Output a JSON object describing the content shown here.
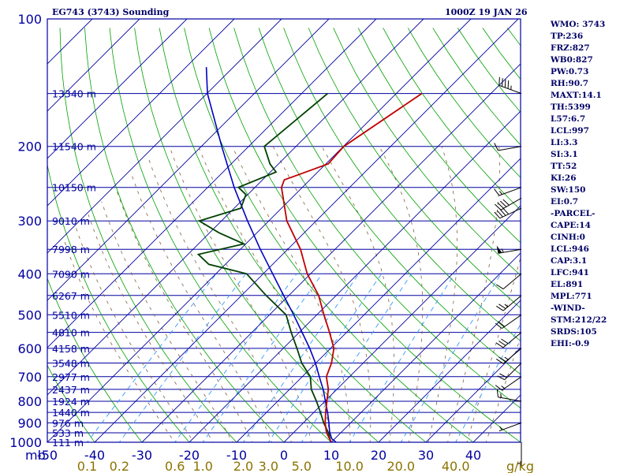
{
  "header": {
    "station": "EG743 (3743) Sounding",
    "time": "1000Z 19 JAN 26"
  },
  "indices": [
    "WMO: 3743",
    "TP:236",
    "FRZ:827",
    "WB0:827",
    "PW:0.73",
    "RH:90.7",
    "MAXT:14.1",
    "TH:5399",
    "L57:6.7",
    "LCL:997",
    "LI:3.3",
    "SI:3.1",
    "TT:52",
    "KI:26",
    "SW:150",
    "EI:0.7",
    "-PARCEL-",
    "CAPE:14",
    "CINH:0",
    "LCL:946",
    "CAP:3.1",
    "LFC:941",
    "EL:891",
    "MPL:771",
    "-WIND-",
    "STM:212/22",
    "SRDS:105",
    "EHI:-0.9"
  ],
  "colors": {
    "frame": "#0000a0",
    "isobar": "#0000a0",
    "isotherm": "#0000a0",
    "dry_adiabat": "#00a000",
    "mixing_ratio": "#3399ff",
    "moist_adiabat": "#806040",
    "temperature": "#c00000",
    "dewpoint": "#004000",
    "parcel": "#0000c0",
    "text": "#000066",
    "mixing_ratio_label": "#8b7300"
  },
  "chart_data": {
    "type": "skew-t log-p",
    "pressure_unit_label": "mb",
    "pressure_range": [
      1000,
      100
    ],
    "temperature_range": [
      -50,
      50
    ],
    "pressure_ticks": [
      100,
      200,
      300,
      400,
      500,
      600,
      700,
      800,
      900,
      1000
    ],
    "pressure_tick_labels": [
      "100",
      "200",
      "300",
      "400",
      "500",
      "600",
      "700",
      "800",
      "900",
      "1000"
    ],
    "temperature_ticks": [
      -50,
      -40,
      -30,
      -20,
      -10,
      0,
      10,
      20,
      30,
      40,
      50
    ],
    "temperature_tick_labels": [
      "-50",
      "-40",
      "-30",
      "-20",
      "-10",
      "0",
      "10",
      "20",
      "30",
      "40",
      ""
    ],
    "mixing_ratio_unit_label": "g/kg",
    "mixing_ratio_values": [
      0.1,
      0.2,
      0.6,
      1.0,
      2.0,
      3.0,
      5.0,
      10.0,
      20.0,
      40.0
    ],
    "mixing_ratio_labels": [
      "0.1",
      "0.2",
      "0.6",
      "1.0",
      "2.0",
      "3.0",
      "5.0",
      "10.0",
      "20.0",
      "40.0"
    ],
    "height_levels": [
      {
        "p": 1000,
        "label": "111 m"
      },
      {
        "p": 950,
        "label": "533 m"
      },
      {
        "p": 900,
        "label": "976 m"
      },
      {
        "p": 850,
        "label": "1440 m"
      },
      {
        "p": 800,
        "label": "1924 m"
      },
      {
        "p": 750,
        "label": "2437 m"
      },
      {
        "p": 700,
        "label": "2977 m"
      },
      {
        "p": 650,
        "label": "3548 m"
      },
      {
        "p": 600,
        "label": "4158 m"
      },
      {
        "p": 550,
        "label": "4810 m"
      },
      {
        "p": 500,
        "label": "5510 m"
      },
      {
        "p": 450,
        "label": "6267 m"
      },
      {
        "p": 400,
        "label": "7090 m"
      },
      {
        "p": 350,
        "label": "7998 m"
      },
      {
        "p": 300,
        "label": "9010 m"
      },
      {
        "p": 250,
        "label": "10150 m"
      },
      {
        "p": 200,
        "label": "11540 m"
      },
      {
        "p": 150,
        "label": "13340 m"
      }
    ],
    "temperature_profile": [
      {
        "p": 1000,
        "t": 10.0
      },
      {
        "p": 950,
        "t": 7.0
      },
      {
        "p": 900,
        "t": 4.6
      },
      {
        "p": 850,
        "t": 2.5
      },
      {
        "p": 800,
        "t": 0.4
      },
      {
        "p": 750,
        "t": -1.8
      },
      {
        "p": 700,
        "t": -4.9
      },
      {
        "p": 650,
        "t": -6.7
      },
      {
        "p": 600,
        "t": -9.3
      },
      {
        "p": 550,
        "t": -13.6
      },
      {
        "p": 500,
        "t": -18.5
      },
      {
        "p": 450,
        "t": -23.7
      },
      {
        "p": 400,
        "t": -30.7
      },
      {
        "p": 350,
        "t": -37.3
      },
      {
        "p": 300,
        "t": -46.2
      },
      {
        "p": 250,
        "t": -54.4
      },
      {
        "p": 240,
        "t": -55.4
      },
      {
        "p": 230,
        "t": -52.5
      },
      {
        "p": 220,
        "t": -49.5
      },
      {
        "p": 200,
        "t": -49.9
      },
      {
        "p": 150,
        "t": -44.6
      }
    ],
    "dewpoint_profile": [
      {
        "p": 1000,
        "t": 9.9
      },
      {
        "p": 950,
        "t": 7.4
      },
      {
        "p": 900,
        "t": 4.3
      },
      {
        "p": 850,
        "t": 1.4
      },
      {
        "p": 800,
        "t": -1.8
      },
      {
        "p": 750,
        "t": -5.4
      },
      {
        "p": 700,
        "t": -8.3
      },
      {
        "p": 650,
        "t": -13.0
      },
      {
        "p": 600,
        "t": -17.1
      },
      {
        "p": 550,
        "t": -21.7
      },
      {
        "p": 500,
        "t": -26.5
      },
      {
        "p": 450,
        "t": -34.8
      },
      {
        "p": 400,
        "t": -43.5
      },
      {
        "p": 380,
        "t": -53.5
      },
      {
        "p": 360,
        "t": -57.8
      },
      {
        "p": 340,
        "t": -50.4
      },
      {
        "p": 320,
        "t": -58.0
      },
      {
        "p": 300,
        "t": -64.7
      },
      {
        "p": 280,
        "t": -58.6
      },
      {
        "p": 260,
        "t": -60.4
      },
      {
        "p": 250,
        "t": -63.5
      },
      {
        "p": 230,
        "t": -58.8
      },
      {
        "p": 220,
        "t": -61.8
      },
      {
        "p": 200,
        "t": -66.7
      },
      {
        "p": 150,
        "t": -64.5
      }
    ],
    "parcel_profile": [
      {
        "p": 1000,
        "t": 11.0
      },
      {
        "p": 980,
        "t": 9.3
      },
      {
        "p": 946,
        "t": 7.5
      },
      {
        "p": 900,
        "t": 5.4
      },
      {
        "p": 850,
        "t": 2.9
      },
      {
        "p": 800,
        "t": 0.1
      },
      {
        "p": 750,
        "t": -2.9
      },
      {
        "p": 700,
        "t": -6.4
      },
      {
        "p": 650,
        "t": -10.1
      },
      {
        "p": 600,
        "t": -14.4
      },
      {
        "p": 550,
        "t": -19.4
      },
      {
        "p": 500,
        "t": -24.9
      },
      {
        "p": 450,
        "t": -31.1
      },
      {
        "p": 400,
        "t": -38.0
      },
      {
        "p": 350,
        "t": -45.8
      },
      {
        "p": 300,
        "t": -54.5
      },
      {
        "p": 250,
        "t": -64.4
      },
      {
        "p": 200,
        "t": -75.7
      },
      {
        "p": 150,
        "t": -89.9
      },
      {
        "p": 130,
        "t": -95.7
      }
    ],
    "wind_levels": [
      {
        "p": 150,
        "dir": 290,
        "spd": 45
      },
      {
        "p": 200,
        "dir": 260,
        "spd": 10
      },
      {
        "p": 250,
        "dir": 250,
        "spd": 15
      },
      {
        "p": 265,
        "dir": 240,
        "spd": 40
      },
      {
        "p": 280,
        "dir": 245,
        "spd": 40
      },
      {
        "p": 350,
        "dir": 260,
        "spd": 55
      },
      {
        "p": 400,
        "dir": 230,
        "spd": 10
      },
      {
        "p": 450,
        "dir": 230,
        "spd": 25
      },
      {
        "p": 500,
        "dir": 235,
        "spd": 20
      },
      {
        "p": 550,
        "dir": 230,
        "spd": 30
      },
      {
        "p": 600,
        "dir": 230,
        "spd": 25
      },
      {
        "p": 650,
        "dir": 225,
        "spd": 20
      },
      {
        "p": 700,
        "dir": 235,
        "spd": 15
      },
      {
        "p": 800,
        "dir": 280,
        "spd": 15
      },
      {
        "p": 900,
        "dir": 250,
        "spd": 5
      },
      {
        "p": 1000,
        "dir": 180,
        "spd": 5
      }
    ]
  }
}
